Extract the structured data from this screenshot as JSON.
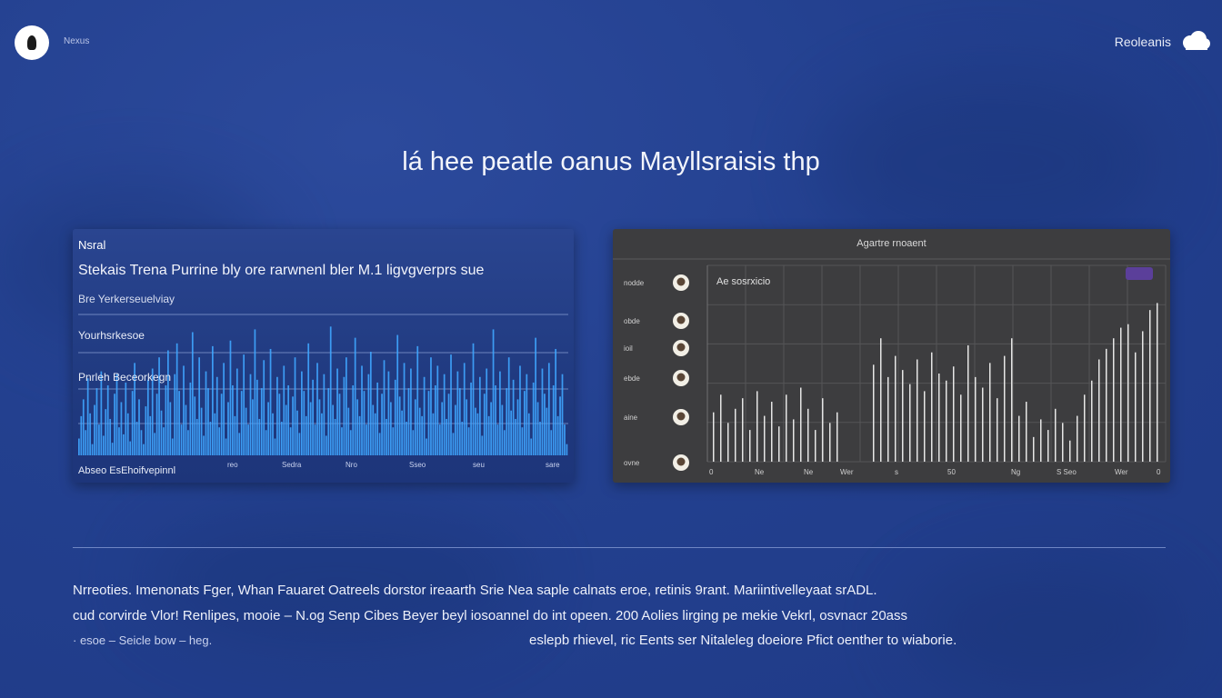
{
  "header": {
    "brand": "Nexus",
    "account_label": "Reoleanis"
  },
  "title": "lá hee peatle oanus Mayllsraisis thp",
  "left_panel": {
    "small_label": "Nsral",
    "heading": "Stekais Trena Purrine bly ore rarwnenl bler M.1 ligvgverprs sue",
    "subheading": "Bre Yerkerseuelviay",
    "label_1": "Yourhsrkesoe",
    "label_2": "Pnrleh Beceorkegn",
    "footer": "Abseo EsEhoifvepinnl",
    "colors": {
      "bars": "#3fa6ff",
      "gridlines": "#8ea4d8"
    }
  },
  "right_panel": {
    "title": "Agartre rnoaent",
    "series_label": "Ae sosrxicio",
    "row_labels": [
      "nodde",
      "obde",
      "ioil",
      "ebde",
      "aine",
      "ovne"
    ],
    "colors": {
      "bars": "#e6e6e6",
      "tag": "#5b3f9a"
    }
  },
  "footer_text": {
    "line_1": "Nrreoties. Imenonats Fger, Whan Fauaret Oatreels dorstor ireaarth Srie Nea saple calnats eroe, retinis 9rant. Mariintivelleyaat srADL.",
    "line_2": "cud corvirde Vlor! Renlipes, mooie – N.og Senp Cibes Beyer beyl iosoannel do int opeen. 200 Aolies lirging pe mekie Vekrl, osvnacr 20ass",
    "line_3_left": "· esoe – Seicle bow – heg.",
    "line_3_right": "eslepb rhievel, ric Eents ser Nitaleleg doeiore Pfict oenther to wiaborie."
  },
  "chart_data": [
    {
      "type": "bar",
      "title": "",
      "xlabel": "",
      "ylabel": "",
      "ylim": [
        0,
        100
      ],
      "grid": true,
      "x_tick_labels": [
        "reo",
        "Sedra",
        "Nro",
        "Sseo",
        "seu",
        "sare"
      ],
      "values": [
        12,
        28,
        40,
        18,
        55,
        30,
        8,
        36,
        48,
        22,
        60,
        14,
        33,
        50,
        26,
        9,
        44,
        58,
        20,
        38,
        15,
        52,
        30,
        10,
        46,
        66,
        24,
        40,
        18,
        8,
        35,
        54,
        28,
        62,
        16,
        44,
        70,
        32,
        20,
        50,
        75,
        38,
        12,
        58,
        80,
        46,
        22,
        64,
        36,
        18,
        52,
        88,
        42,
        26,
        70,
        34,
        14,
        60,
        48,
        24,
        78,
        30,
        56,
        20,
        44,
        66,
        12,
        38,
        82,
        50,
        28,
        62,
        16,
        46,
        72,
        34,
        22,
        58,
        40,
        90,
        54,
        26,
        48,
        68,
        18,
        38,
        76,
        30,
        12,
        56,
        44,
        24,
        64,
        36,
        50,
        20,
        42,
        70,
        32,
        16,
        60,
        46,
        28,
        80,
        38,
        54,
        22,
        66,
        40,
        30,
        58,
        14,
        48,
        92,
        36,
        26,
        62,
        44,
        20,
        56,
        70,
        34,
        18,
        50,
        84,
        40,
        28,
        64,
        46,
        22,
        58,
        74,
        36,
        30,
        52,
        16,
        44,
        68,
        26,
        60,
        38,
        20,
        54,
        86,
        42,
        32,
        66,
        24,
        48,
        62,
        18,
        40,
        78,
        34,
        28,
        56,
        12,
        46,
        70,
        30,
        50,
        64,
        22,
        38,
        58,
        26,
        44,
        72,
        16,
        36,
        60,
        48,
        24,
        66,
        40,
        20,
        52,
        80,
        34,
        30,
        56,
        14,
        44,
        62,
        28,
        38,
        90,
        50,
        22,
        60,
        36,
        18,
        48,
        70,
        32,
        54,
        26,
        40,
        64,
        20,
        46,
        58,
        30,
        12,
        52,
        84,
        38,
        24,
        62,
        44,
        34,
        66,
        18,
        50,
        76,
        28,
        42,
        58,
        22,
        8
      ]
    },
    {
      "type": "bar",
      "title": "Agartre rnoaent",
      "xlabel": "",
      "ylabel": "",
      "ylim": [
        0,
        100
      ],
      "grid": true,
      "x_tick_labels": [
        "0",
        "Ne",
        "Ne",
        "Wer",
        "s",
        "50",
        "Ng",
        "S Seo",
        "Wer",
        "0"
      ],
      "values": [
        28,
        38,
        22,
        30,
        36,
        18,
        40,
        26,
        34,
        20,
        38,
        24,
        42,
        30,
        18,
        36,
        22,
        28,
        0,
        0,
        0,
        0,
        55,
        70,
        48,
        60,
        52,
        44,
        58,
        40,
        62,
        50,
        46,
        54,
        38,
        66,
        48,
        42,
        56,
        36,
        60,
        70,
        26,
        34,
        14,
        24,
        18,
        30,
        22,
        12,
        26,
        38,
        46,
        58,
        64,
        70,
        76,
        78,
        62,
        74,
        86,
        90
      ]
    }
  ]
}
